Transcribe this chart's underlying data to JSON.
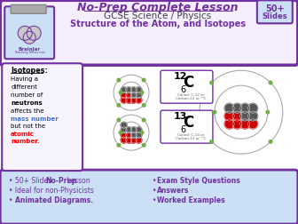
{
  "bg_color": "#ffffff",
  "purple": "#7030a0",
  "light_blue": "#cce0f5",
  "blue": "#4472c4",
  "red": "#ff0000",
  "dark_gray": "#404040",
  "green_dot": "#70ad47",
  "title_line1": "No-Prep Complete Lesson",
  "title_line2": "GCSE Science / Physics",
  "title_line3": "Structure of the Atom, and Isotopes",
  "badge_line1": "50+",
  "badge_line2": "Slides",
  "iso_title": "Isotopes:",
  "iso_lines": [
    "Having a",
    "different",
    "number of",
    "neutrons",
    "affects the"
  ],
  "iso_mass": "mass number",
  "iso_mid": "but not the",
  "iso_atomic1": "atomic",
  "iso_atomic2": "number.",
  "bullet_left_pre": [
    "50+ Slides ",
    "Ideal for non-Physicists",
    ""
  ],
  "bullet_left_bold": [
    "No-Prep",
    "",
    "Animated Diagrams."
  ],
  "bullet_left_post": [
    " Lesson",
    "",
    ""
  ],
  "bullet_right": [
    "Exam Style Questions",
    "Answers",
    "Worked Examples"
  ]
}
